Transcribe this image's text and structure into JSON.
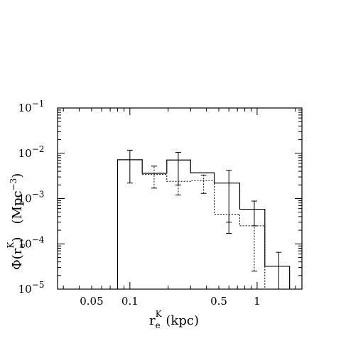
{
  "chart_data": {
    "type": "histogram",
    "x_scale": "log",
    "y_scale": "log",
    "xlim": [
      0.027,
      2.25
    ],
    "ylim": [
      1e-05,
      0.1
    ],
    "grid": false,
    "xlabel": {
      "main": "r",
      "sub": "e",
      "sup": "K",
      "rest": " (kpc)"
    },
    "ylabel": {
      "phi": "Φ(r",
      "sub": "e",
      "sup": "K",
      "close": ")",
      "unit": "(Mpc",
      "unit_sup": "−3",
      "unit_close": ")"
    },
    "x_tick_labels": [
      {
        "value": 0.05,
        "label": "0.05"
      },
      {
        "value": 0.1,
        "label": "0.1"
      },
      {
        "value": 0.5,
        "label": "0.5"
      },
      {
        "value": 1,
        "label": "1"
      }
    ],
    "y_tick_labels": [
      {
        "value": 1e-05,
        "base": "10",
        "exp": "−5"
      },
      {
        "value": 0.0001,
        "base": "10",
        "exp": "−4"
      },
      {
        "value": 0.001,
        "base": "10",
        "exp": "−3"
      },
      {
        "value": 0.01,
        "base": "10",
        "exp": "−2"
      },
      {
        "value": 0.1,
        "base": "10",
        "exp": "−1"
      }
    ],
    "series": [
      {
        "style": "solid",
        "bins": [
          {
            "x0": 0.08,
            "x1": 0.125,
            "y": 0.0072,
            "err_x": 0.1,
            "err_lo": 0.0022,
            "err_hi": 0.0117
          },
          {
            "x0": 0.125,
            "x1": 0.195,
            "y": 0.0036
          },
          {
            "x0": 0.195,
            "x1": 0.3,
            "y": 0.0071,
            "err_x": 0.24,
            "err_lo": 0.002,
            "err_hi": 0.0105
          },
          {
            "x0": 0.3,
            "x1": 0.46,
            "y": 0.0037
          },
          {
            "x0": 0.46,
            "x1": 0.73,
            "y": 0.0022,
            "err_x": 0.6,
            "err_lo": 0.00017,
            "err_hi": 0.0042
          },
          {
            "x0": 0.73,
            "x1": 1.15,
            "y": 0.00058,
            "err_x": 0.95,
            "err_lo": 0.00025,
            "err_hi": 0.00088
          },
          {
            "x0": 1.15,
            "x1": 1.8,
            "y": 3.2e-05,
            "err_x": 1.48,
            "err_lo": 1e-05,
            "err_hi": 6.5e-05
          }
        ]
      },
      {
        "style": "dotted",
        "bins": [
          {
            "x0": 0.125,
            "x1": 0.195,
            "y": 0.0034,
            "err_x": 0.155,
            "err_lo": 0.0017,
            "err_hi": 0.0052
          },
          {
            "x0": 0.195,
            "x1": 0.3,
            "y": 0.0024,
            "err_x": 0.24,
            "err_lo": 0.0012
          },
          {
            "x0": 0.3,
            "x1": 0.46,
            "y": 0.0025,
            "err_x": 0.38,
            "err_lo": 0.0013,
            "err_hi": 0.0033
          },
          {
            "x0": 0.46,
            "x1": 0.73,
            "y": 0.00045,
            "err_x": 0.6,
            "err_lo": 0.0003
          },
          {
            "x0": 0.73,
            "x1": 1.15,
            "y": 0.00025,
            "err_x": 0.95,
            "err_lo": 2.5e-05
          },
          {
            "x0": 1.15,
            "x1": 1.8,
            "y": 1e-05
          }
        ]
      }
    ]
  }
}
